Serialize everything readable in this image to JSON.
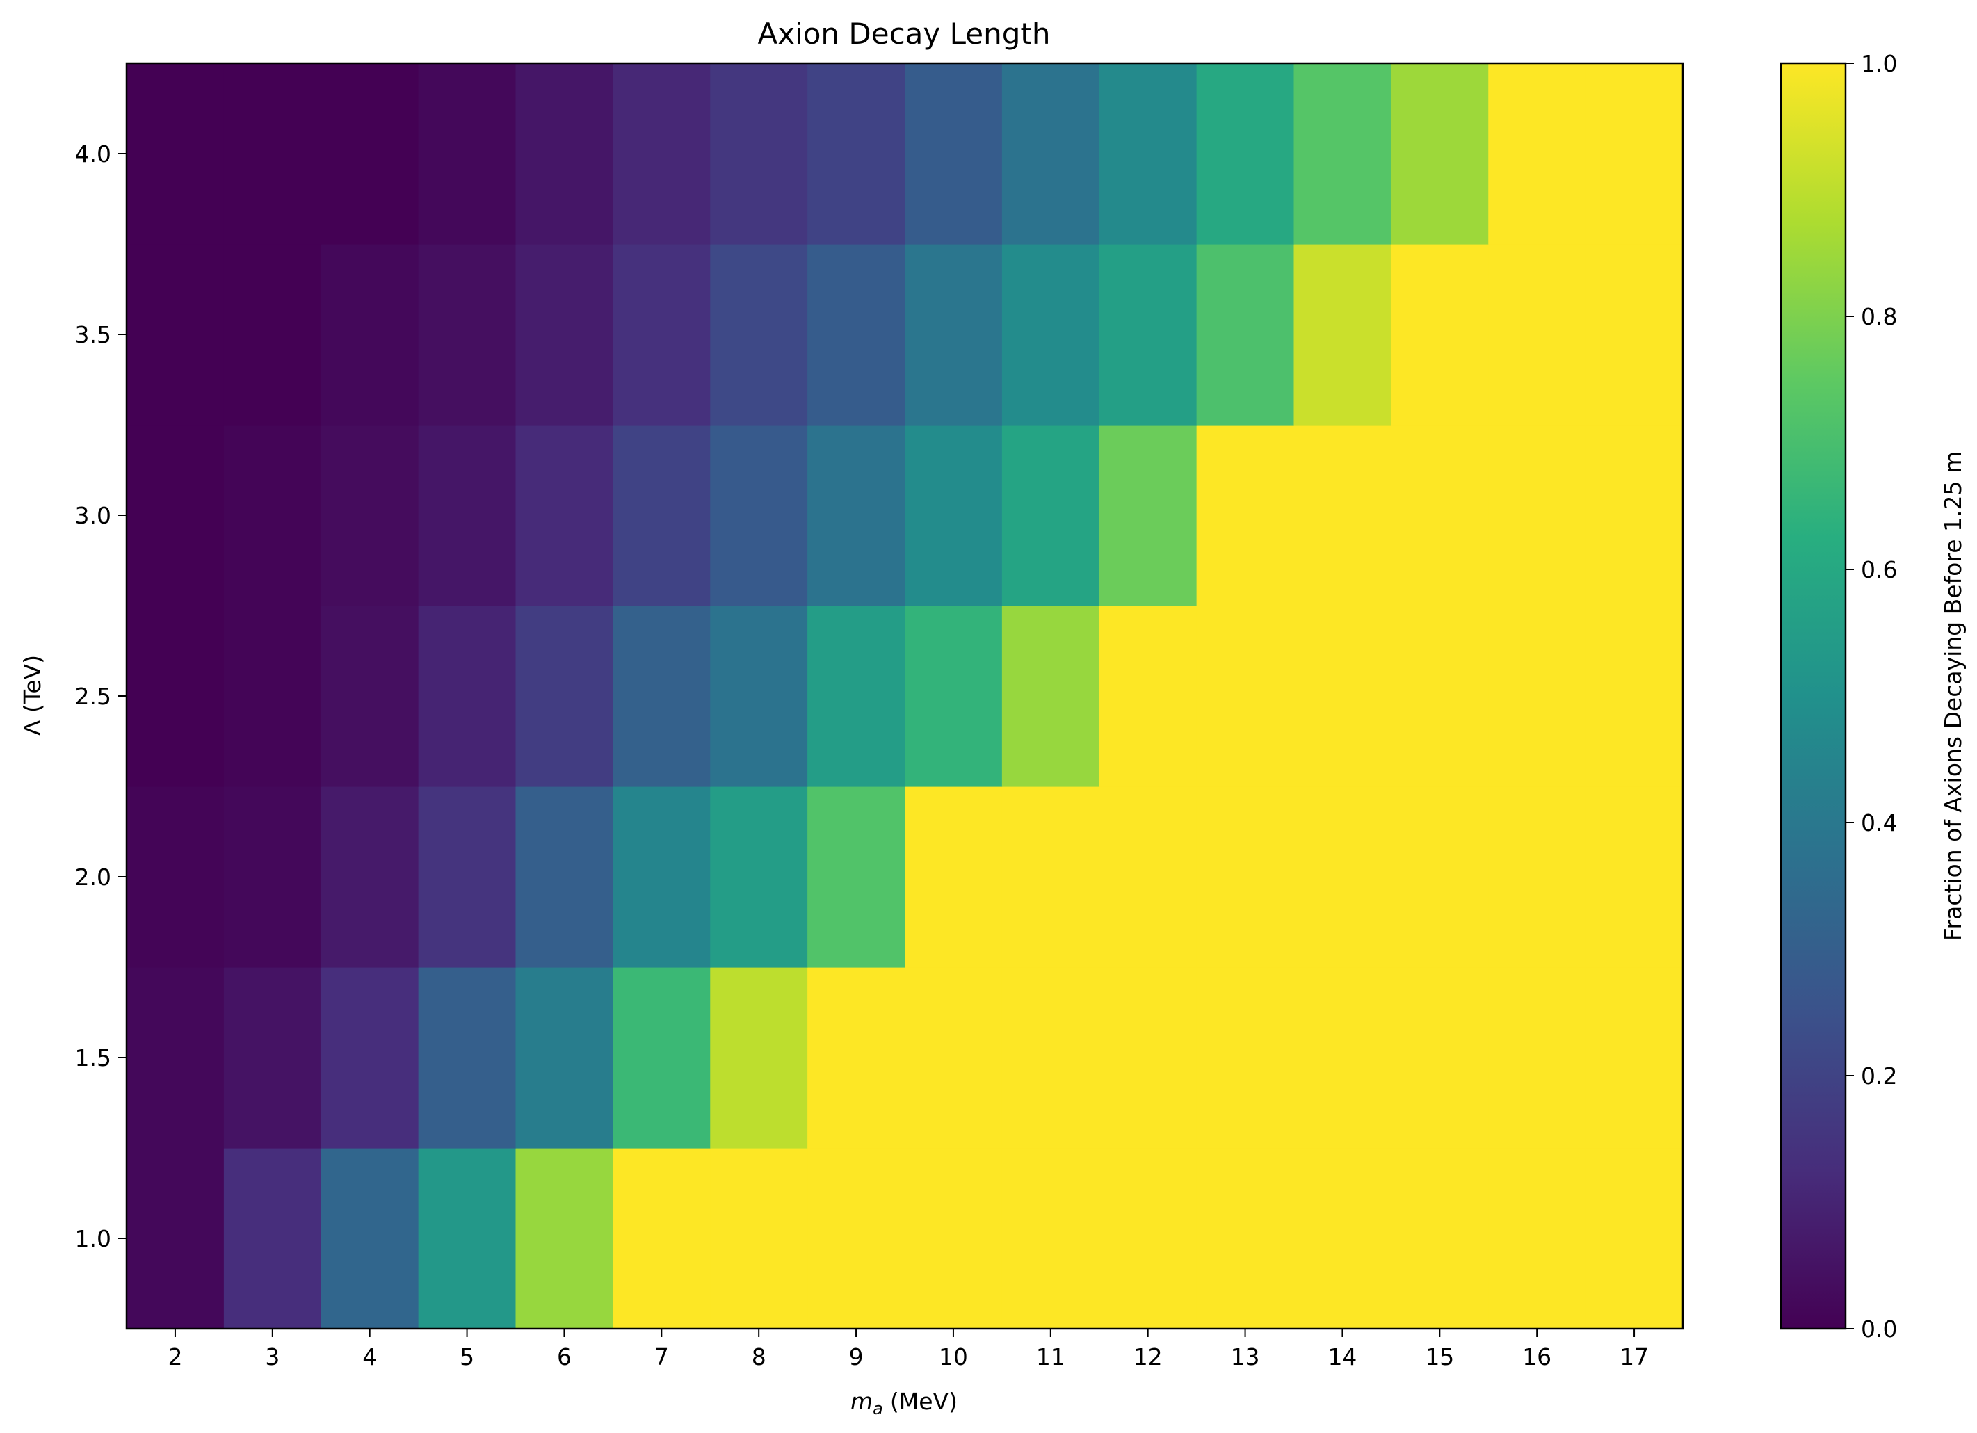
{
  "chart_data": {
    "type": "heatmap",
    "title": "Axion Decay Length",
    "xlabel": "m",
    "xlabel_subscript": "a",
    "xlabel_unit": "(MeV)",
    "ylabel": "Λ (TeV)",
    "colorbar_label": "Fraction of Axions Decaying Before 1.25 m",
    "colormap": "viridis",
    "x": [
      2,
      3,
      4,
      5,
      6,
      7,
      8,
      9,
      10,
      11,
      12,
      13,
      14,
      15,
      16,
      17
    ],
    "y": [
      1.0,
      1.5,
      2.0,
      2.5,
      3.0,
      3.5,
      4.0
    ],
    "xlim": [
      1.5,
      17.5
    ],
    "ylim": [
      0.75,
      4.25
    ],
    "xticks": [
      "2",
      "3",
      "4",
      "5",
      "6",
      "7",
      "8",
      "9",
      "10",
      "11",
      "12",
      "13",
      "14",
      "15",
      "16",
      "17"
    ],
    "yticks": [
      "1.0",
      "1.5",
      "2.0",
      "2.5",
      "3.0",
      "3.5",
      "4.0"
    ],
    "cticks": [
      "0.0",
      "0.2",
      "0.4",
      "0.6",
      "0.8",
      "1.0"
    ],
    "clim": [
      0.0,
      1.0
    ],
    "values": [
      [
        0.02,
        0.13,
        0.33,
        0.53,
        0.84,
        1,
        1,
        1,
        1,
        1,
        1,
        1,
        1,
        1,
        1,
        1
      ],
      [
        0.02,
        0.05,
        0.13,
        0.3,
        0.42,
        0.67,
        0.9,
        1,
        1,
        1,
        1,
        1,
        1,
        1,
        1,
        1
      ],
      [
        0.01,
        0.02,
        0.07,
        0.15,
        0.3,
        0.45,
        0.55,
        0.72,
        1,
        1,
        1,
        1,
        1,
        1,
        1,
        1
      ],
      [
        0.0,
        0.01,
        0.04,
        0.1,
        0.18,
        0.31,
        0.38,
        0.55,
        0.65,
        0.84,
        1,
        1,
        1,
        1,
        1,
        1
      ],
      [
        0.0,
        0.01,
        0.03,
        0.06,
        0.12,
        0.2,
        0.28,
        0.38,
        0.48,
        0.58,
        0.77,
        1,
        1,
        1,
        1,
        1
      ],
      [
        0.0,
        0.0,
        0.02,
        0.04,
        0.08,
        0.14,
        0.22,
        0.29,
        0.39,
        0.48,
        0.56,
        0.71,
        0.92,
        1,
        1,
        1
      ],
      [
        0.0,
        0.0,
        0.0,
        0.02,
        0.06,
        0.11,
        0.16,
        0.2,
        0.29,
        0.38,
        0.47,
        0.6,
        0.73,
        0.85,
        1,
        1
      ]
    ]
  }
}
